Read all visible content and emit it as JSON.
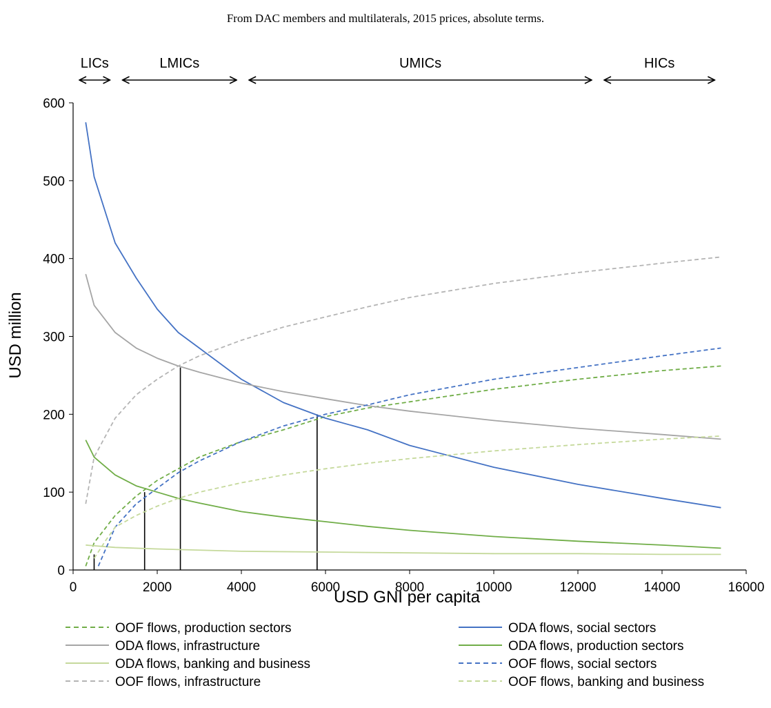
{
  "subtitle": "From DAC members and multilaterals, 2015 prices, absolute terms.",
  "chart_data": {
    "type": "line",
    "subtitle": "From DAC members and multilaterals, 2015 prices, absolute terms.",
    "xlabel": "USD GNI per capita",
    "ylabel": "USD million",
    "xlim": [
      0,
      16000
    ],
    "ylim": [
      0,
      600
    ],
    "x_ticks": [
      "0",
      "2000",
      "4000",
      "6000",
      "8000",
      "10000",
      "12000",
      "14000",
      "16000"
    ],
    "y_ticks": [
      "0",
      "100",
      "200",
      "300",
      "400",
      "500",
      "600"
    ],
    "grid": false,
    "legend_position": "bottom",
    "income_bands": [
      {
        "label": "LICs",
        "from": 0,
        "to": 1025
      },
      {
        "label": "LMICs",
        "from": 1025,
        "to": 4035
      },
      {
        "label": "UMICs",
        "from": 4035,
        "to": 12475
      },
      {
        "label": "HICs",
        "from": 12475,
        "to": 15400
      }
    ],
    "crossover_markers": [
      {
        "x": 500,
        "y": 20
      },
      {
        "x": 1700,
        "y": 100
      },
      {
        "x": 2550,
        "y": 260
      },
      {
        "x": 5800,
        "y": 200
      }
    ],
    "series": [
      {
        "name": "OOF flows, production sectors",
        "color": "#70ad47",
        "dash": "dashed",
        "x": [
          300,
          500,
          1000,
          1500,
          2000,
          2500,
          3000,
          4000,
          5000,
          6000,
          7000,
          8000,
          10000,
          12000,
          14000,
          15400
        ],
        "y": [
          5,
          35,
          70,
          95,
          115,
          130,
          145,
          165,
          180,
          197,
          208,
          216,
          232,
          245,
          256,
          262
        ]
      },
      {
        "name": "ODA flows, social sectors",
        "color": "#4472c4",
        "dash": "solid",
        "x": [
          300,
          500,
          1000,
          1500,
          2000,
          2500,
          3000,
          4000,
          5000,
          6000,
          7000,
          8000,
          10000,
          12000,
          14000,
          15400
        ],
        "y": [
          575,
          505,
          420,
          375,
          335,
          305,
          285,
          245,
          215,
          195,
          180,
          160,
          132,
          110,
          92,
          80
        ]
      },
      {
        "name": "ODA flows, infrastructure",
        "color": "#a5a5a5",
        "dash": "solid",
        "x": [
          300,
          500,
          1000,
          1500,
          2000,
          2500,
          3000,
          4000,
          5000,
          6000,
          7000,
          8000,
          10000,
          12000,
          14000,
          15400
        ],
        "y": [
          380,
          340,
          305,
          285,
          272,
          262,
          254,
          240,
          229,
          220,
          211,
          204,
          192,
          182,
          174,
          168
        ]
      },
      {
        "name": "ODA flows, production sectors",
        "color": "#70ad47",
        "dash": "solid",
        "x": [
          300,
          500,
          1000,
          1500,
          2000,
          2500,
          3000,
          4000,
          5000,
          6000,
          7000,
          8000,
          10000,
          12000,
          14000,
          15400
        ],
        "y": [
          167,
          145,
          122,
          108,
          100,
          92,
          86,
          75,
          68,
          62,
          56,
          51,
          43,
          37,
          32,
          28
        ]
      },
      {
        "name": "ODA flows, banking and business",
        "color": "#c5d99b",
        "dash": "solid",
        "x": [
          300,
          1000,
          2000,
          4000,
          6000,
          8000,
          10000,
          12000,
          14000,
          15400
        ],
        "y": [
          32,
          29,
          27,
          24,
          23,
          22,
          21,
          21,
          20,
          20
        ]
      },
      {
        "name": "OOF flows, social sectors",
        "color": "#4472c4",
        "dash": "dashed",
        "x": [
          600,
          800,
          1000,
          1500,
          2000,
          2500,
          3000,
          4000,
          5000,
          6000,
          7000,
          8000,
          10000,
          12000,
          14000,
          15400
        ],
        "y": [
          5,
          30,
          55,
          85,
          105,
          125,
          140,
          165,
          185,
          200,
          212,
          225,
          245,
          260,
          275,
          285
        ]
      },
      {
        "name": "OOF flows, infrastructure",
        "color": "#b4b4b4",
        "dash": "dashed",
        "x": [
          300,
          500,
          1000,
          1500,
          2000,
          2500,
          3000,
          4000,
          5000,
          6000,
          7000,
          8000,
          10000,
          12000,
          14000,
          15400
        ],
        "y": [
          85,
          145,
          195,
          225,
          245,
          262,
          275,
          295,
          312,
          325,
          338,
          350,
          368,
          382,
          394,
          402
        ]
      },
      {
        "name": "OOF flows, banking and business",
        "color": "#c5d99b",
        "dash": "dashed",
        "x": [
          500,
          800,
          1000,
          1500,
          2000,
          2500,
          3000,
          4000,
          5000,
          6000,
          7000,
          8000,
          10000,
          12000,
          14000,
          15400
        ],
        "y": [
          15,
          40,
          55,
          70,
          82,
          92,
          100,
          112,
          122,
          130,
          137,
          143,
          153,
          161,
          168,
          172
        ]
      }
    ]
  }
}
